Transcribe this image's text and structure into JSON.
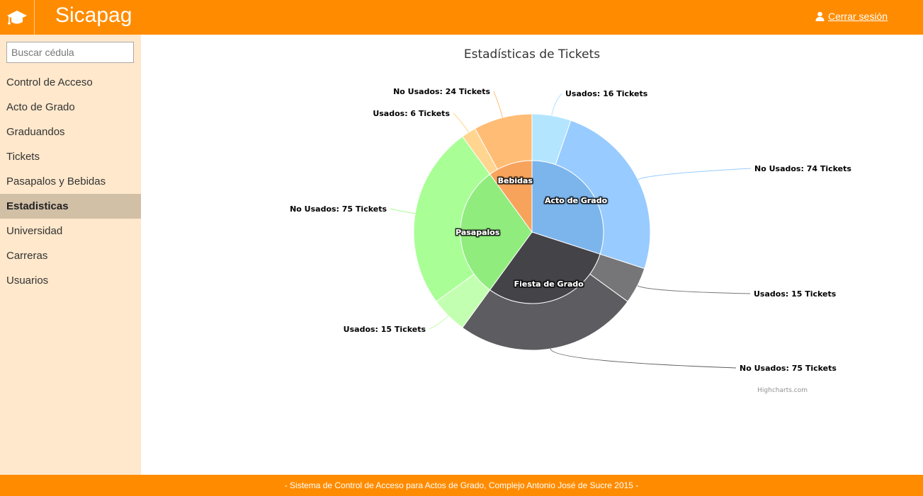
{
  "app": {
    "brand": "Sicapag",
    "logout_label": "Cerrar sesión"
  },
  "sidebar": {
    "search_placeholder": "Buscar cédula",
    "items": [
      {
        "label": "Control de Acceso",
        "active": false
      },
      {
        "label": "Acto de Grado",
        "active": false
      },
      {
        "label": "Graduandos",
        "active": false
      },
      {
        "label": "Tickets",
        "active": false
      },
      {
        "label": "Pasapalos y Bebidas",
        "active": false
      },
      {
        "label": "Estadisticas",
        "active": true
      },
      {
        "label": "Universidad",
        "active": false
      },
      {
        "label": "Carreras",
        "active": false
      },
      {
        "label": "Usuarios",
        "active": false
      }
    ]
  },
  "footer": {
    "text": "- Sistema de Control de Acceso para Actos de Grado, Complejo Antonio José de Sucre 2015 -"
  },
  "chart_data": {
    "type": "pie",
    "title": "Estadísticas de Tickets",
    "credits": "Highcharts.com",
    "series": [
      {
        "categories": [
          {
            "name": "Acto de Grado",
            "value": 90,
            "color": "#7cb5ec"
          },
          {
            "name": "Fiesta de Grado",
            "value": 90,
            "color": "#434348"
          },
          {
            "name": "Pasapalos",
            "value": 90,
            "color": "#90ed7d"
          },
          {
            "name": "Bebidas",
            "value": 30,
            "color": "#f7a35c"
          }
        ]
      },
      {
        "points": [
          {
            "label": "Usados: 16 Tickets",
            "value": 16,
            "color": "#b3e5ff"
          },
          {
            "label": "No Usados: 74 Tickets",
            "value": 74,
            "color": "#98cbff"
          },
          {
            "label": "Usados: 15 Tickets",
            "value": 15,
            "color": "#767679"
          },
          {
            "label": "No Usados: 75 Tickets",
            "value": 75,
            "color": "#5c5c61"
          },
          {
            "label": "Usados: 15 Tickets",
            "value": 15,
            "color": "#c3ffb0"
          },
          {
            "label": "No Usados: 75 Tickets",
            "value": 75,
            "color": "#a9ff96"
          },
          {
            "label": "Usados: 6 Tickets",
            "value": 6,
            "color": "#ffd58f"
          },
          {
            "label": "No Usados: 24 Tickets",
            "value": 24,
            "color": "#ffbc75"
          }
        ]
      }
    ]
  }
}
